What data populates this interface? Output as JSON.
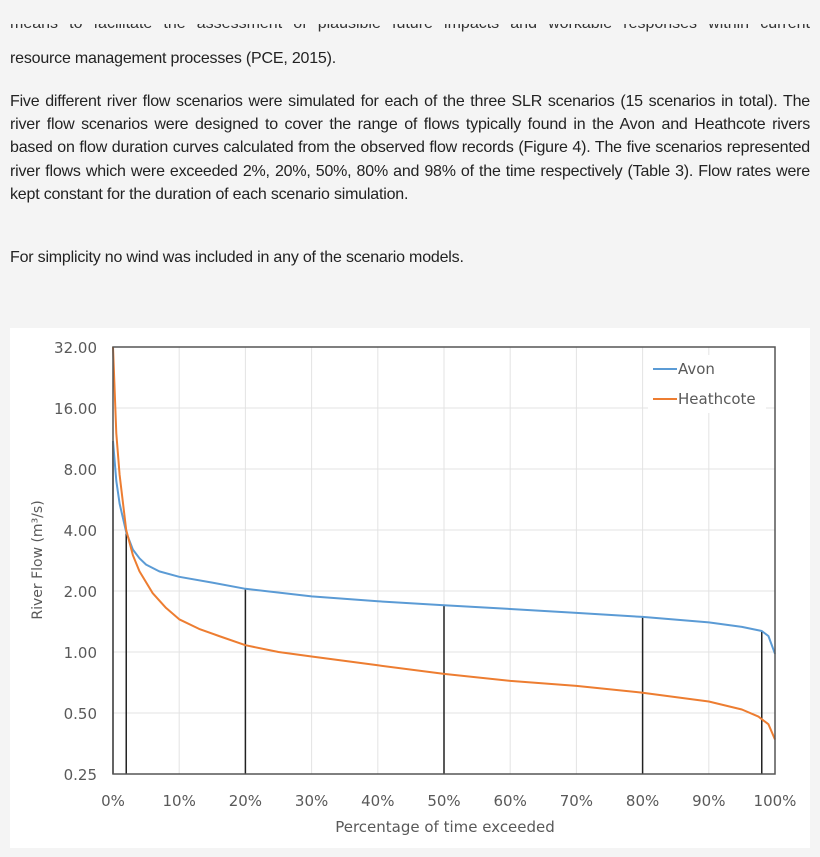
{
  "document": {
    "cut_line": "means to facilitate the assessment of plausible future impacts and workable responses within current",
    "paragraphs": [
      "resource management processes (PCE, 2015).",
      "Five different river flow scenarios were simulated for each of the three SLR scenarios (15 scenarios in total). The river flow scenarios were designed to cover the range of flows typically found in the Avon and Heathcote rivers based on flow duration curves calculated from the observed flow records (Figure 4). The five scenarios represented river flows which were exceeded 2%, 20%, 50%, 80% and 98% of the time respectively (Table 3). Flow rates were kept constant for the duration of each scenario simulation.",
      "For simplicity no wind was included in any of the scenario models."
    ]
  },
  "chart_data": {
    "type": "line",
    "title": "",
    "xlabel": "Percentage of time exceeded",
    "ylabel": "River Flow (m³/s)",
    "x_scale": "linear",
    "y_scale": "log2",
    "xlim": [
      0,
      100
    ],
    "ylim": [
      0.25,
      32
    ],
    "x_ticks": [
      "0%",
      "10%",
      "20%",
      "30%",
      "40%",
      "50%",
      "60%",
      "70%",
      "80%",
      "90%",
      "100%"
    ],
    "y_ticks": [
      "32.00",
      "16.00",
      "8.00",
      "4.00",
      "2.00",
      "1.00",
      "0.50",
      "0.25"
    ],
    "grid": true,
    "legend": "top-right",
    "series": [
      {
        "name": "Avon",
        "color": "#5b9bd5",
        "x": [
          0,
          0.5,
          1,
          2,
          3,
          4,
          5,
          7,
          10,
          15,
          20,
          30,
          40,
          50,
          60,
          70,
          80,
          90,
          95,
          98,
          99,
          100
        ],
        "y": [
          11,
          7,
          5.4,
          3.9,
          3.2,
          2.9,
          2.7,
          2.5,
          2.35,
          2.2,
          2.05,
          1.88,
          1.78,
          1.7,
          1.63,
          1.56,
          1.49,
          1.4,
          1.33,
          1.27,
          1.2,
          0.98
        ]
      },
      {
        "name": "Heathcote",
        "color": "#ed7d31",
        "x": [
          0,
          0.5,
          1,
          2,
          3,
          4,
          6,
          8,
          10,
          13,
          16,
          20,
          25,
          30,
          40,
          50,
          60,
          70,
          80,
          90,
          95,
          97.5,
          99,
          100
        ],
        "y": [
          32,
          12,
          7.5,
          4.0,
          3.0,
          2.5,
          1.95,
          1.65,
          1.45,
          1.3,
          1.2,
          1.08,
          1.0,
          0.95,
          0.86,
          0.78,
          0.72,
          0.68,
          0.63,
          0.57,
          0.52,
          0.48,
          0.44,
          0.37
        ]
      }
    ],
    "scenario_markers": {
      "color": "#222222",
      "x": [
        0,
        2,
        20,
        50,
        80,
        98
      ],
      "y": [
        11,
        3.9,
        2.05,
        1.7,
        1.49,
        1.27
      ]
    }
  }
}
